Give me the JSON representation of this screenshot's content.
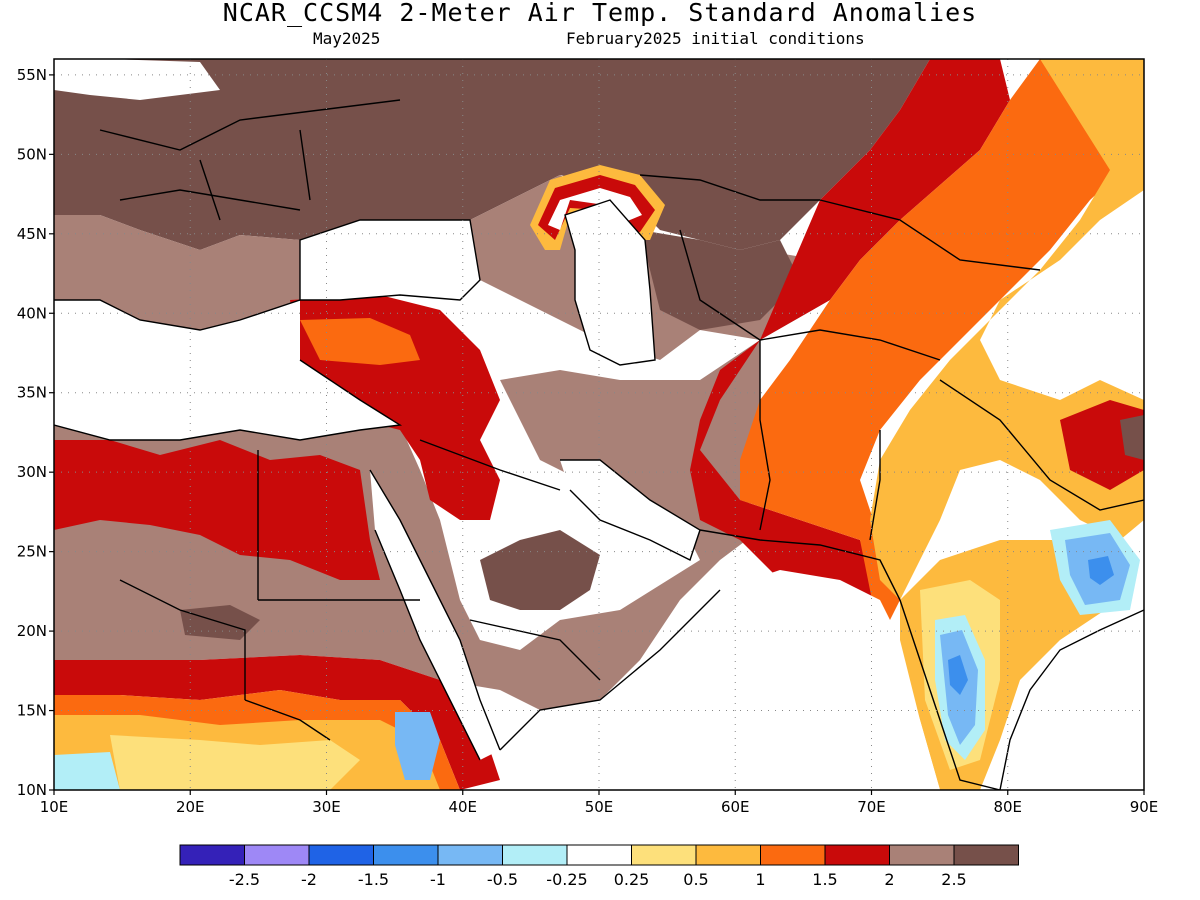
{
  "header": {
    "title": "NCAR_CCSM4 2-Meter Air Temp. Standard Anomalies",
    "subtitle_left": "May2025",
    "subtitle_right": "February2025 initial conditions"
  },
  "map": {
    "lon_range": [
      10,
      90
    ],
    "lat_range": [
      10,
      56
    ],
    "lat_labels": [
      "55N",
      "50N",
      "45N",
      "40N",
      "35N",
      "30N",
      "25N",
      "20N",
      "15N",
      "10N"
    ],
    "lat_values": [
      55,
      50,
      45,
      40,
      35,
      30,
      25,
      20,
      15,
      10
    ],
    "lon_labels": [
      "10E",
      "20E",
      "30E",
      "40E",
      "50E",
      "60E",
      "70E",
      "80E",
      "90E"
    ],
    "lon_values": [
      10,
      20,
      30,
      40,
      50,
      60,
      70,
      80,
      90
    ],
    "grid": "dotted"
  },
  "colorbar": {
    "colors": [
      "#3421b8",
      "#9e88f6",
      "#1f63e6",
      "#3c8fed",
      "#77b8f4",
      "#b2eef7",
      "#ffffff",
      "#fde07b",
      "#fdba3e",
      "#fb6a10",
      "#c90a0a",
      "#a98177",
      "#76504a"
    ],
    "labels": [
      "-2.5",
      "-2",
      "-1.5",
      "-1",
      "-0.5",
      "-0.25",
      "0.25",
      "0.5",
      "1",
      "1.5",
      "2",
      "2.5"
    ]
  }
}
